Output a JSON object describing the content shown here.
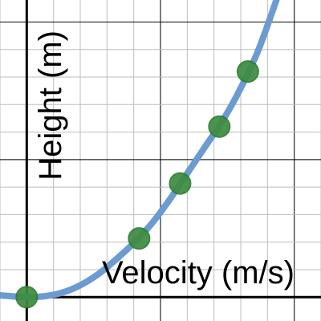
{
  "chart_data": {
    "type": "scatter",
    "title": "",
    "xlabel": "Velocity (m/s)",
    "ylabel": "Height (m)",
    "xlim": [
      -1.5,
      16.5
    ],
    "ylim": [
      -1.3,
      16.2
    ],
    "grid": true,
    "colors": {
      "curve": "#6b9bd1",
      "point_fill": "#3d8b40",
      "point_edge": "#2e7d32",
      "axis": "#000000",
      "grid_minor": "#bdbdbd",
      "grid_major": "#000000"
    },
    "series": [
      {
        "type": "scatter",
        "points": [
          {
            "x": 0,
            "y": 0
          },
          {
            "x": 6.3,
            "y": 3.2
          },
          {
            "x": 8.6,
            "y": 6.2
          },
          {
            "x": 10.8,
            "y": 9.3
          },
          {
            "x": 12.4,
            "y": 12.3
          }
        ]
      },
      {
        "type": "line",
        "points": [
          {
            "x": -1.5,
            "y": 0.1
          },
          {
            "x": 0,
            "y": 0
          },
          {
            "x": 1,
            "y": 0.05
          },
          {
            "x": 2,
            "y": 0.25
          },
          {
            "x": 3,
            "y": 0.65
          },
          {
            "x": 4,
            "y": 1.25
          },
          {
            "x": 5,
            "y": 2.05
          },
          {
            "x": 6,
            "y": 2.95
          },
          {
            "x": 7,
            "y": 4.0
          },
          {
            "x": 8,
            "y": 5.3
          },
          {
            "x": 9,
            "y": 6.75
          },
          {
            "x": 10,
            "y": 8.2
          },
          {
            "x": 11,
            "y": 9.65
          },
          {
            "x": 12,
            "y": 11.4
          },
          {
            "x": 13,
            "y": 13.5
          },
          {
            "x": 14,
            "y": 16.2
          }
        ]
      }
    ]
  }
}
